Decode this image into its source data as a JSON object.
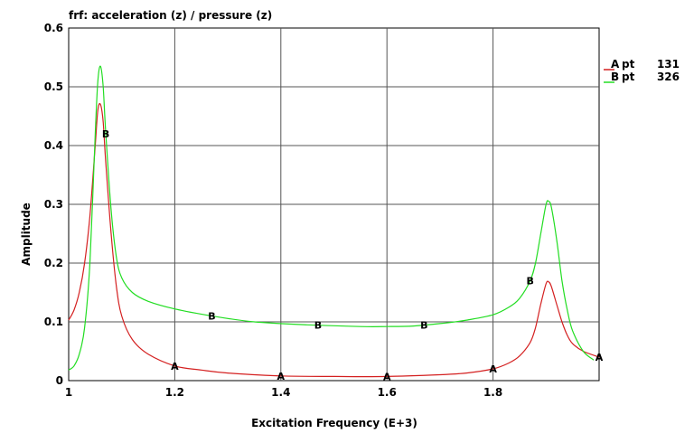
{
  "chart_data": {
    "type": "line",
    "title": "frf: acceleration (z) / pressure (z)",
    "xlabel": "Excitation Frequency (E+3)",
    "ylabel": "Amplitude",
    "xlim": [
      1.0,
      2.0
    ],
    "ylim": [
      0.0,
      0.6
    ],
    "xticks": [
      "1",
      "1.2",
      "1.4",
      "1.6",
      "1.8"
    ],
    "xtick_values": [
      1.0,
      1.2,
      1.4,
      1.6,
      1.8
    ],
    "yticks": [
      "0",
      "0.1",
      "0.2",
      "0.3",
      "0.4",
      "0.5",
      "0.6"
    ],
    "ytick_values": [
      0.0,
      0.1,
      0.2,
      0.3,
      0.4,
      0.5,
      0.6
    ],
    "grid": true,
    "legend_position": "top-right",
    "series": [
      {
        "name": "A",
        "legend_label": "pt",
        "legend_value": "131",
        "color": "#d42020",
        "marker": "A",
        "x": [
          1.0,
          1.01,
          1.02,
          1.03,
          1.04,
          1.05,
          1.055,
          1.06,
          1.065,
          1.07,
          1.08,
          1.09,
          1.1,
          1.12,
          1.15,
          1.2,
          1.25,
          1.3,
          1.4,
          1.5,
          1.6,
          1.7,
          1.75,
          1.8,
          1.83,
          1.85,
          1.87,
          1.88,
          1.89,
          1.9,
          1.905,
          1.91,
          1.92,
          1.93,
          1.94,
          1.95,
          1.97,
          2.0
        ],
        "y": [
          0.103,
          0.12,
          0.15,
          0.2,
          0.28,
          0.4,
          0.46,
          0.47,
          0.44,
          0.37,
          0.25,
          0.16,
          0.11,
          0.07,
          0.045,
          0.025,
          0.018,
          0.013,
          0.008,
          0.007,
          0.007,
          0.01,
          0.013,
          0.02,
          0.03,
          0.042,
          0.065,
          0.09,
          0.13,
          0.165,
          0.168,
          0.16,
          0.13,
          0.1,
          0.077,
          0.063,
          0.05,
          0.04
        ],
        "marker_x": [
          1.2,
          1.4,
          1.6,
          1.8,
          2.0
        ]
      },
      {
        "name": "B",
        "legend_label": "pt",
        "legend_value": "326",
        "color": "#22dd22",
        "marker": "B",
        "x": [
          1.0,
          1.01,
          1.02,
          1.03,
          1.04,
          1.05,
          1.055,
          1.06,
          1.065,
          1.07,
          1.08,
          1.09,
          1.1,
          1.12,
          1.15,
          1.2,
          1.27,
          1.35,
          1.45,
          1.55,
          1.6,
          1.65,
          1.7,
          1.75,
          1.8,
          1.83,
          1.85,
          1.87,
          1.88,
          1.89,
          1.9,
          1.905,
          1.91,
          1.92,
          1.93,
          1.94,
          1.95,
          1.97,
          1.99
        ],
        "y": [
          0.018,
          0.025,
          0.045,
          0.09,
          0.2,
          0.42,
          0.51,
          0.535,
          0.5,
          0.42,
          0.29,
          0.21,
          0.175,
          0.15,
          0.135,
          0.122,
          0.11,
          0.1,
          0.095,
          0.092,
          0.092,
          0.093,
          0.097,
          0.103,
          0.112,
          0.125,
          0.14,
          0.17,
          0.2,
          0.25,
          0.3,
          0.305,
          0.295,
          0.24,
          0.17,
          0.12,
          0.085,
          0.05,
          0.035
        ],
        "marker_x": [
          1.07,
          1.27,
          1.47,
          1.67,
          1.87
        ]
      }
    ]
  }
}
